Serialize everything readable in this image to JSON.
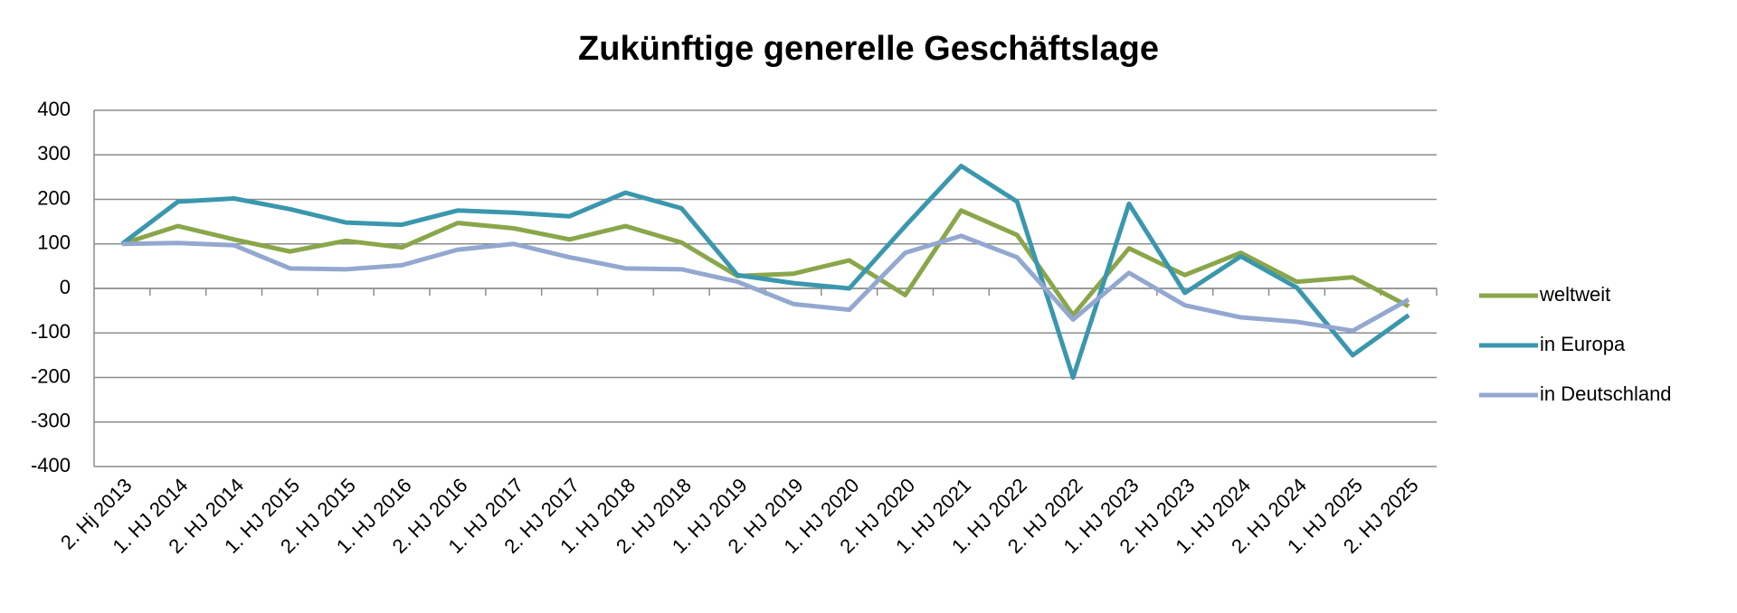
{
  "chart_data": {
    "type": "line",
    "title": "Zukünftige generelle Geschäftslage",
    "categories": [
      "2. Hj 2013",
      "1. HJ 2014",
      "2. HJ 2014",
      "1. HJ 2015",
      "2. HJ 2015",
      "1. HJ 2016",
      "2. HJ 2016",
      "1. HJ 2017",
      "2. HJ 2017",
      "1. HJ 2018",
      "2. HJ 2018",
      "1. HJ 2019",
      "2. HJ 2019",
      "1. HJ 2020",
      "2. HJ 2020",
      "1. HJ 2021",
      "1. HJ 2022",
      "2. HJ 2022",
      "1. HJ 2023",
      "2. HJ 2023",
      "1. HJ 2024",
      "2. HJ 2024",
      "1. HJ 2025",
      "2. HJ 2025"
    ],
    "series": [
      {
        "name": "weltweit",
        "color": "#8aa64a",
        "values": [
          100,
          140,
          110,
          83,
          107,
          92,
          147,
          135,
          110,
          140,
          103,
          28,
          33,
          63,
          -15,
          175,
          120,
          -60,
          90,
          30,
          80,
          15,
          25,
          -40
        ]
      },
      {
        "name": "in Europa",
        "color": "#3a97ad",
        "values": [
          100,
          195,
          202,
          178,
          148,
          143,
          175,
          170,
          162,
          215,
          180,
          30,
          12,
          0,
          140,
          275,
          195,
          -200,
          190,
          -10,
          72,
          2,
          -150,
          -60
        ]
      },
      {
        "name": "in Deutschland",
        "color": "#93a8d0",
        "values": [
          100,
          102,
          97,
          45,
          43,
          52,
          87,
          100,
          70,
          45,
          43,
          15,
          -35,
          -48,
          80,
          118,
          70,
          -70,
          35,
          -38,
          -65,
          -75,
          -95,
          -25
        ]
      }
    ],
    "ylim": [
      -400,
      400
    ],
    "yticks": [
      -400,
      -300,
      -200,
      -100,
      0,
      100,
      200,
      300,
      400
    ],
    "grid": true,
    "legend": "right"
  }
}
